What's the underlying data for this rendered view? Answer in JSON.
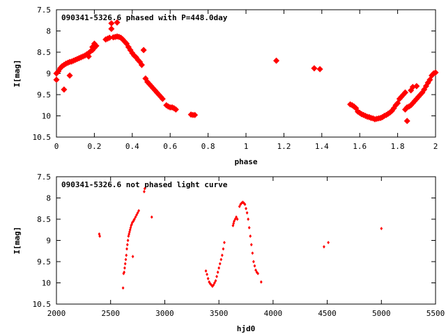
{
  "chart_data": [
    {
      "type": "scatter",
      "title": "090341-5326.6 phased with P=448.0day",
      "xlabel": "phase",
      "ylabel": "I[mag]",
      "xlim": [
        0,
        2
      ],
      "ylim": [
        7.5,
        10.5
      ],
      "y_inverted": true,
      "xticks": [
        0,
        0.2,
        0.4,
        0.6,
        0.8,
        1,
        1.2,
        1.4,
        1.6,
        1.8,
        2
      ],
      "yticks": [
        7.5,
        8,
        8.5,
        9,
        9.5,
        10,
        10.5
      ],
      "marker_color": "#ff0000",
      "grid": false,
      "series": [
        {
          "values": [
            [
              0.0,
              9.0
            ],
            [
              0.0,
              9.15
            ],
            [
              0.01,
              8.95
            ],
            [
              0.02,
              8.88
            ],
            [
              0.03,
              8.83
            ],
            [
              0.04,
              8.8
            ],
            [
              0.04,
              9.38
            ],
            [
              0.05,
              8.77
            ],
            [
              0.06,
              8.75
            ],
            [
              0.07,
              8.73
            ],
            [
              0.07,
              9.05
            ],
            [
              0.08,
              8.72
            ],
            [
              0.09,
              8.7
            ],
            [
              0.1,
              8.68
            ],
            [
              0.11,
              8.66
            ],
            [
              0.12,
              8.64
            ],
            [
              0.13,
              8.62
            ],
            [
              0.14,
              8.6
            ],
            [
              0.15,
              8.58
            ],
            [
              0.16,
              8.55
            ],
            [
              0.17,
              8.52
            ],
            [
              0.17,
              8.6
            ],
            [
              0.18,
              8.48
            ],
            [
              0.19,
              8.45
            ],
            [
              0.19,
              8.38
            ],
            [
              0.2,
              8.4
            ],
            [
              0.2,
              8.3
            ],
            [
              0.21,
              8.35
            ],
            [
              0.26,
              8.2
            ],
            [
              0.27,
              8.18
            ],
            [
              0.28,
              8.16
            ],
            [
              0.29,
              7.82
            ],
            [
              0.29,
              7.95
            ],
            [
              0.3,
              8.15
            ],
            [
              0.31,
              8.14
            ],
            [
              0.32,
              7.8
            ],
            [
              0.32,
              8.13
            ],
            [
              0.33,
              8.14
            ],
            [
              0.34,
              8.16
            ],
            [
              0.35,
              8.2
            ],
            [
              0.36,
              8.25
            ],
            [
              0.37,
              8.3
            ],
            [
              0.38,
              8.38
            ],
            [
              0.39,
              8.45
            ],
            [
              0.4,
              8.52
            ],
            [
              0.41,
              8.58
            ],
            [
              0.42,
              8.62
            ],
            [
              0.43,
              8.68
            ],
            [
              0.44,
              8.73
            ],
            [
              0.45,
              8.8
            ],
            [
              0.46,
              8.45
            ],
            [
              0.47,
              9.12
            ],
            [
              0.48,
              9.2
            ],
            [
              0.49,
              9.25
            ],
            [
              0.5,
              9.3
            ],
            [
              0.51,
              9.35
            ],
            [
              0.52,
              9.4
            ],
            [
              0.53,
              9.45
            ],
            [
              0.54,
              9.5
            ],
            [
              0.55,
              9.55
            ],
            [
              0.56,
              9.6
            ],
            [
              0.58,
              9.75
            ],
            [
              0.59,
              9.78
            ],
            [
              0.6,
              9.8
            ],
            [
              0.61,
              9.8
            ],
            [
              0.62,
              9.82
            ],
            [
              0.63,
              9.85
            ],
            [
              0.71,
              9.97
            ],
            [
              0.72,
              9.98
            ],
            [
              0.73,
              9.98
            ],
            [
              1.16,
              8.7
            ],
            [
              1.36,
              8.88
            ],
            [
              1.39,
              8.9
            ],
            [
              1.55,
              9.73
            ],
            [
              1.56,
              9.75
            ],
            [
              1.57,
              9.78
            ],
            [
              1.58,
              9.82
            ],
            [
              1.59,
              9.9
            ],
            [
              1.6,
              9.93
            ],
            [
              1.61,
              9.96
            ],
            [
              1.62,
              9.98
            ],
            [
              1.63,
              10.0
            ],
            [
              1.64,
              10.02
            ],
            [
              1.65,
              10.03
            ],
            [
              1.66,
              10.05
            ],
            [
              1.67,
              10.06
            ],
            [
              1.68,
              10.08
            ],
            [
              1.69,
              10.07
            ],
            [
              1.7,
              10.06
            ],
            [
              1.71,
              10.05
            ],
            [
              1.72,
              10.03
            ],
            [
              1.73,
              10.0
            ],
            [
              1.74,
              9.98
            ],
            [
              1.75,
              9.95
            ],
            [
              1.76,
              9.92
            ],
            [
              1.77,
              9.88
            ],
            [
              1.78,
              9.82
            ],
            [
              1.79,
              9.75
            ],
            [
              1.8,
              9.7
            ],
            [
              1.81,
              9.6
            ],
            [
              1.82,
              9.55
            ],
            [
              1.83,
              9.5
            ],
            [
              1.84,
              9.45
            ],
            [
              1.84,
              9.85
            ],
            [
              1.85,
              9.8
            ],
            [
              1.85,
              10.12
            ],
            [
              1.86,
              9.78
            ],
            [
              1.87,
              9.4
            ],
            [
              1.87,
              9.75
            ],
            [
              1.88,
              9.32
            ],
            [
              1.88,
              9.7
            ],
            [
              1.89,
              9.65
            ],
            [
              1.9,
              9.3
            ],
            [
              1.9,
              9.6
            ],
            [
              1.91,
              9.55
            ],
            [
              1.92,
              9.5
            ],
            [
              1.93,
              9.45
            ],
            [
              1.94,
              9.38
            ],
            [
              1.95,
              9.3
            ],
            [
              1.96,
              9.22
            ],
            [
              1.97,
              9.15
            ],
            [
              1.98,
              9.05
            ],
            [
              1.99,
              9.0
            ],
            [
              2.0,
              8.98
            ]
          ]
        }
      ]
    },
    {
      "type": "scatter",
      "title": "090341-5326.6 not phased light curve",
      "xlabel": "hjd0",
      "ylabel": "I[mag]",
      "xlim": [
        2000,
        5500
      ],
      "ylim": [
        7.5,
        10.5
      ],
      "y_inverted": true,
      "xticks": [
        2000,
        2500,
        3000,
        3500,
        4000,
        4500,
        5000,
        5500
      ],
      "yticks": [
        7.5,
        8,
        8.5,
        9,
        9.5,
        10,
        10.5
      ],
      "marker_color": "#ff0000",
      "grid": false,
      "series": [
        {
          "values": [
            [
              2395,
              8.85
            ],
            [
              2400,
              8.9
            ],
            [
              2615,
              10.12
            ],
            [
              2620,
              9.78
            ],
            [
              2625,
              9.75
            ],
            [
              2630,
              9.65
            ],
            [
              2635,
              9.55
            ],
            [
              2640,
              9.45
            ],
            [
              2645,
              9.35
            ],
            [
              2650,
              9.2
            ],
            [
              2655,
              9.1
            ],
            [
              2660,
              9.0
            ],
            [
              2665,
              8.9
            ],
            [
              2670,
              8.85
            ],
            [
              2675,
              8.8
            ],
            [
              2680,
              8.75
            ],
            [
              2685,
              8.7
            ],
            [
              2690,
              8.65
            ],
            [
              2695,
              8.62
            ],
            [
              2700,
              8.58
            ],
            [
              2705,
              9.38
            ],
            [
              2710,
              8.55
            ],
            [
              2715,
              8.52
            ],
            [
              2720,
              8.5
            ],
            [
              2730,
              8.45
            ],
            [
              2740,
              8.4
            ],
            [
              2750,
              8.35
            ],
            [
              2760,
              8.3
            ],
            [
              2810,
              7.85
            ],
            [
              2815,
              7.78
            ],
            [
              2880,
              8.45
            ],
            [
              3380,
              9.72
            ],
            [
              3390,
              9.8
            ],
            [
              3400,
              9.9
            ],
            [
              3410,
              9.98
            ],
            [
              3420,
              10.02
            ],
            [
              3430,
              10.05
            ],
            [
              3440,
              10.08
            ],
            [
              3450,
              10.05
            ],
            [
              3460,
              10.0
            ],
            [
              3470,
              9.95
            ],
            [
              3480,
              9.85
            ],
            [
              3490,
              9.75
            ],
            [
              3500,
              9.65
            ],
            [
              3510,
              9.55
            ],
            [
              3520,
              9.45
            ],
            [
              3530,
              9.35
            ],
            [
              3540,
              9.2
            ],
            [
              3550,
              9.05
            ],
            [
              3630,
              8.65
            ],
            [
              3635,
              8.6
            ],
            [
              3640,
              8.55
            ],
            [
              3650,
              8.5
            ],
            [
              3660,
              8.45
            ],
            [
              3670,
              8.5
            ],
            [
              3690,
              8.2
            ],
            [
              3700,
              8.15
            ],
            [
              3710,
              8.12
            ],
            [
              3720,
              8.1
            ],
            [
              3730,
              8.12
            ],
            [
              3740,
              8.15
            ],
            [
              3750,
              8.25
            ],
            [
              3760,
              8.35
            ],
            [
              3770,
              8.5
            ],
            [
              3780,
              8.7
            ],
            [
              3790,
              8.9
            ],
            [
              3800,
              9.1
            ],
            [
              3810,
              9.3
            ],
            [
              3820,
              9.5
            ],
            [
              3830,
              9.6
            ],
            [
              3840,
              9.7
            ],
            [
              3850,
              9.75
            ],
            [
              3860,
              9.78
            ],
            [
              3890,
              9.98
            ],
            [
              4470,
              9.15
            ],
            [
              4510,
              9.05
            ],
            [
              5000,
              8.72
            ]
          ]
        }
      ]
    }
  ]
}
